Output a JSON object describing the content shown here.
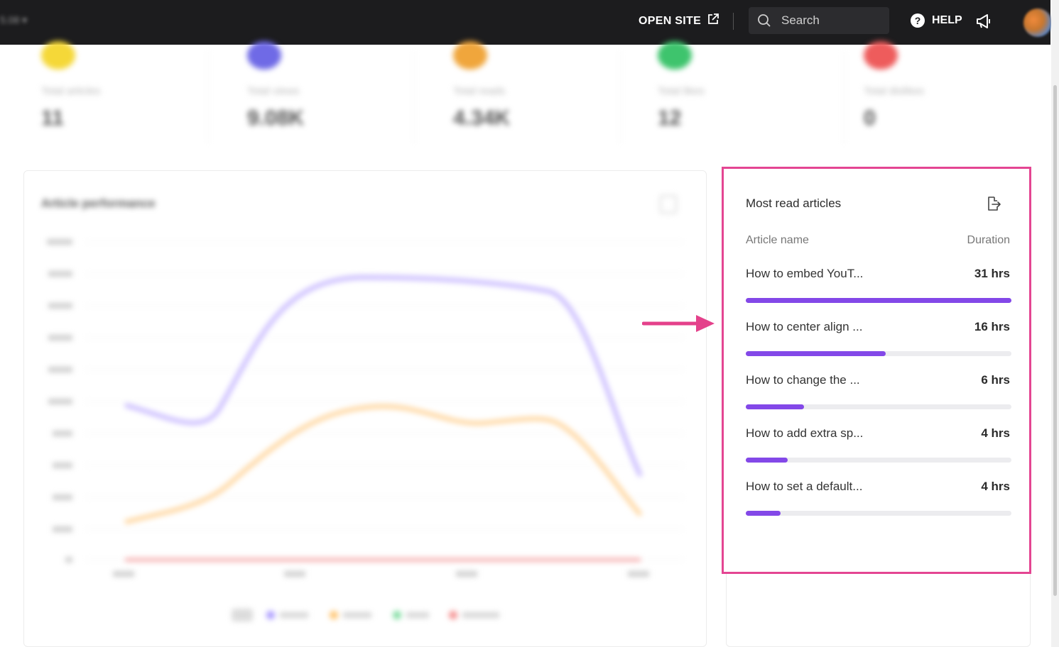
{
  "topbar": {
    "left_menu": "5.08",
    "open_site_label": "OPEN SITE",
    "search_placeholder": "Search",
    "help_label": "HELP"
  },
  "stats": [
    {
      "label": "Total articles",
      "value": "11",
      "color": "#f5d838"
    },
    {
      "label": "Total views",
      "value": "9.08K",
      "color": "#6f6ae6"
    },
    {
      "label": "Total reads",
      "value": "4.34K",
      "color": "#f0a63c"
    },
    {
      "label": "Total likes",
      "value": "12",
      "color": "#3ec46d"
    },
    {
      "label": "Total dislikes",
      "value": "0",
      "color": "#ee5c5c"
    }
  ],
  "performance": {
    "title": "Article performance"
  },
  "most_read": {
    "title": "Most read articles",
    "col_name": "Article name",
    "col_duration": "Duration",
    "accent": "#8348e8",
    "highlight": "#e44592",
    "rows": [
      {
        "name": "How to embed YouT...",
        "duration": "31 hrs",
        "fraction": 1.0
      },
      {
        "name": "How to center align ...",
        "duration": "16 hrs",
        "fraction": 0.526
      },
      {
        "name": "How to change the ...",
        "duration": "6 hrs",
        "fraction": 0.22
      },
      {
        "name": "How to add extra sp...",
        "duration": "4 hrs",
        "fraction": 0.157
      },
      {
        "name": "How to set a default...",
        "duration": "4 hrs",
        "fraction": 0.13
      }
    ]
  }
}
